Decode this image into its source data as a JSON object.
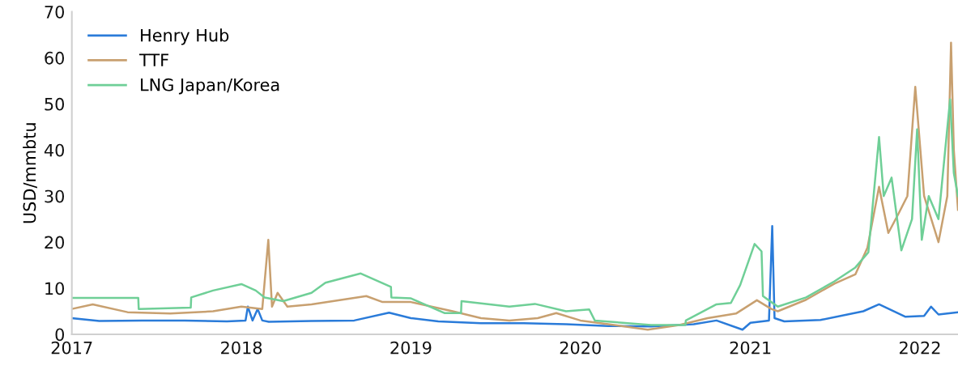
{
  "chart_data": {
    "type": "line",
    "ylabel": "USD/mmbtu",
    "xlim": [
      "2017-01-01",
      "2022-03-24"
    ],
    "ylim": [
      0,
      70
    ],
    "yticks": [
      0,
      10,
      20,
      30,
      40,
      50,
      60,
      70
    ],
    "xticks": [
      {
        "value": "2017-01-01",
        "label": "2017"
      },
      {
        "value": "2018-01-01",
        "label": "2018"
      },
      {
        "value": "2019-01-01",
        "label": "2019"
      },
      {
        "value": "2020-01-01",
        "label": "2020"
      },
      {
        "value": "2021-01-01",
        "label": "2021"
      },
      {
        "value": "2022-01-01",
        "label": "2022"
      }
    ],
    "grid": false,
    "legend": "top left",
    "marker": "none",
    "line_style": "solid",
    "series": [
      {
        "name": "Henry Hub",
        "color": "#2a7bd9",
        "x": [
          "2017-01-01",
          "2017-03-01",
          "2017-06-01",
          "2017-09-01",
          "2017-12-01",
          "2018-01-10",
          "2018-01-15",
          "2018-01-25",
          "2018-02-05",
          "2018-02-15",
          "2018-03-01",
          "2018-06-01",
          "2018-09-01",
          "2018-11-15",
          "2019-01-01",
          "2019-03-01",
          "2019-06-01",
          "2019-09-01",
          "2019-12-01",
          "2020-03-01",
          "2020-06-01",
          "2020-09-01",
          "2020-10-20",
          "2020-12-15",
          "2021-01-01",
          "2021-02-10",
          "2021-02-17",
          "2021-02-22",
          "2021-03-15",
          "2021-06-01",
          "2021-09-01",
          "2021-10-05",
          "2021-12-01",
          "2022-01-10",
          "2022-01-25",
          "2022-02-10",
          "2022-03-24"
        ],
        "values": [
          3.5,
          2.9,
          3.0,
          3.0,
          2.8,
          3.0,
          6.0,
          3.0,
          5.5,
          3.0,
          2.7,
          2.9,
          3.0,
          4.7,
          3.5,
          2.8,
          2.4,
          2.4,
          2.2,
          1.8,
          1.7,
          2.2,
          3.0,
          1.0,
          2.5,
          3.0,
          23.5,
          3.5,
          2.8,
          3.1,
          5.0,
          6.5,
          3.8,
          4.0,
          6.0,
          4.3,
          4.8
        ]
      },
      {
        "name": "TTF",
        "color": "#c8a070",
        "x": [
          "2017-01-01",
          "2017-02-15",
          "2017-05-01",
          "2017-08-01",
          "2017-11-01",
          "2018-01-01",
          "2018-02-15",
          "2018-02-28",
          "2018-03-08",
          "2018-03-20",
          "2018-04-10",
          "2018-06-01",
          "2018-09-27",
          "2018-11-01",
          "2019-01-01",
          "2019-04-01",
          "2019-06-01",
          "2019-08-01",
          "2019-10-01",
          "2019-11-10",
          "2020-01-01",
          "2020-03-01",
          "2020-05-25",
          "2020-08-01",
          "2020-10-01",
          "2020-12-01",
          "2021-01-15",
          "2021-02-15",
          "2021-03-01",
          "2021-05-01",
          "2021-07-01",
          "2021-08-15",
          "2021-09-10",
          "2021-10-05",
          "2021-10-25",
          "2021-11-15",
          "2021-12-05",
          "2021-12-22",
          "2022-01-10",
          "2022-02-10",
          "2022-03-01",
          "2022-03-09",
          "2022-03-15",
          "2022-03-24"
        ],
        "values": [
          5.5,
          6.5,
          4.8,
          4.5,
          5.0,
          6.0,
          5.5,
          20.5,
          6.0,
          9.0,
          6.0,
          6.5,
          8.3,
          7.0,
          7.0,
          5.0,
          3.5,
          3.0,
          3.5,
          4.6,
          3.0,
          2.2,
          1.0,
          2.0,
          3.5,
          4.5,
          7.4,
          5.5,
          5.0,
          7.5,
          11.0,
          13.0,
          18.8,
          32.0,
          22.0,
          26.0,
          30.0,
          53.7,
          30.0,
          20.0,
          30.0,
          63.3,
          40.0,
          27.0
        ]
      },
      {
        "name": "LNG Japan/Korea",
        "color": "#6fcf97",
        "x": [
          "2017-01-01",
          "2017-05-24",
          "2017-05-25",
          "2017-09-14",
          "2017-09-15",
          "2017-11-01",
          "2018-01-01",
          "2018-02-01",
          "2018-02-20",
          "2018-04-01",
          "2018-06-01",
          "2018-07-01",
          "2018-09-15",
          "2018-11-19",
          "2018-11-20",
          "2019-01-01",
          "2019-03-15",
          "2019-04-19",
          "2019-04-20",
          "2019-08-01",
          "2019-09-25",
          "2019-12-01",
          "2020-01-20",
          "2020-02-01",
          "2020-04-01",
          "2020-06-01",
          "2020-08-14",
          "2020-08-15",
          "2020-10-20",
          "2020-11-20",
          "2020-12-10",
          "2021-01-01",
          "2021-01-10",
          "2021-01-25",
          "2021-01-28",
          "2021-02-15",
          "2021-03-01",
          "2021-05-01",
          "2021-07-01",
          "2021-08-15",
          "2021-09-12",
          "2021-10-05",
          "2021-10-15",
          "2021-11-01",
          "2021-11-22",
          "2021-12-15",
          "2021-12-26",
          "2022-01-05",
          "2022-01-20",
          "2022-02-10",
          "2022-03-07",
          "2022-03-15",
          "2022-03-24"
        ],
        "values": [
          7.9,
          7.9,
          5.5,
          5.8,
          8.0,
          9.5,
          10.9,
          9.5,
          8.0,
          7.2,
          9.0,
          11.2,
          13.2,
          10.3,
          8.0,
          7.8,
          4.6,
          4.6,
          7.2,
          6.0,
          6.6,
          5.0,
          5.4,
          3.0,
          2.5,
          2.0,
          2.0,
          3.0,
          6.5,
          6.8,
          10.7,
          17.0,
          19.6,
          18.0,
          8.3,
          7.0,
          6.0,
          8.0,
          11.5,
          14.5,
          17.8,
          42.8,
          30.0,
          34.0,
          18.2,
          25.0,
          44.5,
          20.5,
          30.0,
          25.0,
          51.0,
          35.0,
          30.0
        ]
      }
    ]
  }
}
